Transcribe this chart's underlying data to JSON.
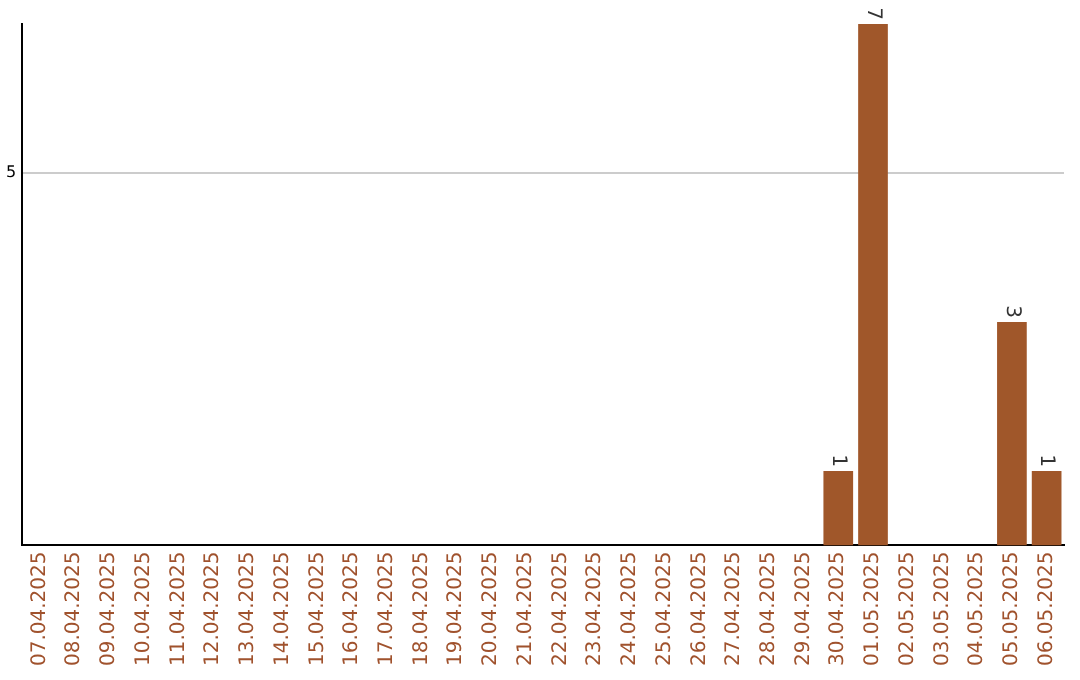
{
  "chart_data": {
    "type": "bar",
    "categories": [
      "07.04.2025",
      "08.04.2025",
      "09.04.2025",
      "10.04.2025",
      "11.04.2025",
      "12.04.2025",
      "13.04.2025",
      "14.04.2025",
      "15.04.2025",
      "16.04.2025",
      "17.04.2025",
      "18.04.2025",
      "19.04.2025",
      "20.04.2025",
      "21.04.2025",
      "22.04.2025",
      "23.04.2025",
      "24.04.2025",
      "25.04.2025",
      "26.04.2025",
      "27.04.2025",
      "28.04.2025",
      "29.04.2025",
      "30.04.2025",
      "01.05.2025",
      "02.05.2025",
      "03.05.2025",
      "04.05.2025",
      "05.05.2025",
      "06.05.2025"
    ],
    "values": [
      null,
      null,
      null,
      null,
      null,
      null,
      null,
      null,
      null,
      null,
      null,
      null,
      null,
      null,
      null,
      null,
      null,
      null,
      null,
      null,
      null,
      null,
      null,
      1,
      7,
      null,
      null,
      null,
      3,
      1
    ],
    "color": "#a0572a",
    "ylim": [
      0,
      7
    ],
    "yticks": [
      5
    ],
    "grid": "y",
    "data_labels": true,
    "legend": false
  }
}
